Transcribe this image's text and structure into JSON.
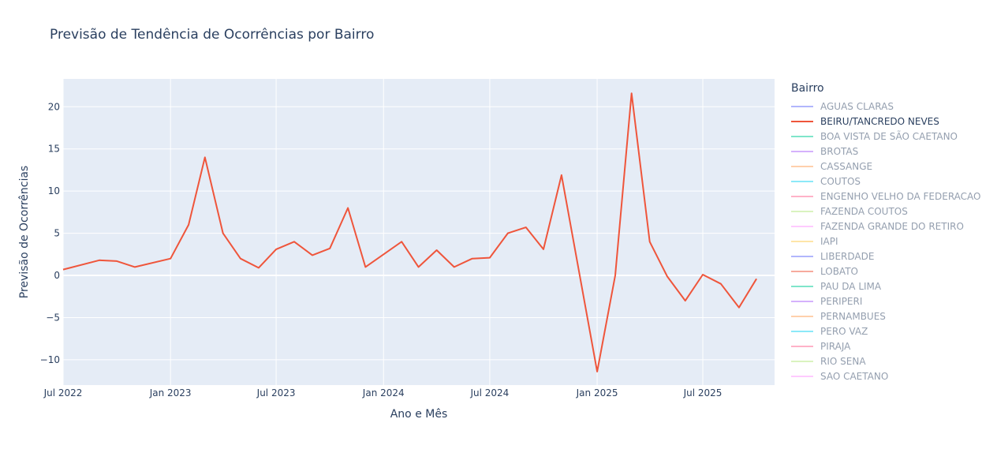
{
  "title": "Previsão de Tendência de Ocorrências por Bairro",
  "legend": {
    "title": "Bairro",
    "items": [
      {
        "label": "AGUAS CLARAS",
        "color": "#636efa",
        "visible": false
      },
      {
        "label": "BEIRU/TANCREDO NEVES",
        "color": "#ef553b",
        "visible": true
      },
      {
        "label": "BOA VISTA DE SÃO CAETANO",
        "color": "#00cc96",
        "visible": false
      },
      {
        "label": "BROTAS",
        "color": "#ab63fa",
        "visible": false
      },
      {
        "label": "CASSANGE",
        "color": "#ffa15a",
        "visible": false
      },
      {
        "label": "COUTOS",
        "color": "#19d3f3",
        "visible": false
      },
      {
        "label": "ENGENHO VELHO DA FEDERACAO",
        "color": "#ff6692",
        "visible": false
      },
      {
        "label": "FAZENDA COUTOS",
        "color": "#b6e880",
        "visible": false
      },
      {
        "label": "FAZENDA GRANDE DO RETIRO",
        "color": "#ff97ff",
        "visible": false
      },
      {
        "label": "IAPI",
        "color": "#fecb52",
        "visible": false
      },
      {
        "label": "LIBERDADE",
        "color": "#636efa",
        "visible": false
      },
      {
        "label": "LOBATO",
        "color": "#ef553b",
        "visible": false
      },
      {
        "label": "PAU DA LIMA",
        "color": "#00cc96",
        "visible": false
      },
      {
        "label": "PERIPERI",
        "color": "#ab63fa",
        "visible": false
      },
      {
        "label": "PERNAMBUES",
        "color": "#ffa15a",
        "visible": false
      },
      {
        "label": "PERO VAZ",
        "color": "#19d3f3",
        "visible": false
      },
      {
        "label": "PIRAJA",
        "color": "#ff6692",
        "visible": false
      },
      {
        "label": "RIO SENA",
        "color": "#b6e880",
        "visible": false
      },
      {
        "label": "SAO CAETANO",
        "color": "#ff97ff",
        "visible": false
      }
    ]
  },
  "chart_data": {
    "type": "line",
    "title": "Previsão de Tendência de Ocorrências por Bairro",
    "xlabel": "Ano e Mês",
    "ylabel": "Previsão de Ocorrências",
    "xlim": [
      "2022-07-01",
      "2025-11-01"
    ],
    "ylim": [
      -13,
      23.3
    ],
    "x_ticks": [
      {
        "date": "2022-07-01",
        "label": "Jul 2022"
      },
      {
        "date": "2023-01-01",
        "label": "Jan 2023"
      },
      {
        "date": "2023-07-01",
        "label": "Jul 2023"
      },
      {
        "date": "2024-01-01",
        "label": "Jan 2024"
      },
      {
        "date": "2024-07-01",
        "label": "Jul 2024"
      },
      {
        "date": "2025-01-01",
        "label": "Jan 2025"
      },
      {
        "date": "2025-07-01",
        "label": "Jul 2025"
      }
    ],
    "y_ticks": [
      {
        "value": 20,
        "label": "20"
      },
      {
        "value": 15,
        "label": "15"
      },
      {
        "value": 10,
        "label": "10"
      },
      {
        "value": 5,
        "label": "5"
      },
      {
        "value": 0,
        "label": "0"
      },
      {
        "value": -5,
        "label": "−5"
      },
      {
        "value": -10,
        "label": "−10"
      }
    ],
    "grid": true,
    "legend_position": "right",
    "series": [
      {
        "name": "BEIRU/TANCREDO NEVES",
        "color": "#ef553b",
        "points": [
          {
            "x": "2022-07-01",
            "y": 0.7
          },
          {
            "x": "2022-09-01",
            "y": 1.8
          },
          {
            "x": "2022-10-01",
            "y": 1.7
          },
          {
            "x": "2022-11-01",
            "y": 1.0
          },
          {
            "x": "2023-01-01",
            "y": 2.0
          },
          {
            "x": "2023-02-01",
            "y": 6.0
          },
          {
            "x": "2023-03-01",
            "y": 14.0
          },
          {
            "x": "2023-04-01",
            "y": 5.0
          },
          {
            "x": "2023-05-01",
            "y": 2.0
          },
          {
            "x": "2023-06-01",
            "y": 0.9
          },
          {
            "x": "2023-07-01",
            "y": 3.1
          },
          {
            "x": "2023-08-01",
            "y": 4.0
          },
          {
            "x": "2023-09-01",
            "y": 2.4
          },
          {
            "x": "2023-10-01",
            "y": 3.2
          },
          {
            "x": "2023-11-01",
            "y": 8.0
          },
          {
            "x": "2023-12-01",
            "y": 1.0
          },
          {
            "x": "2024-02-01",
            "y": 4.0
          },
          {
            "x": "2024-03-01",
            "y": 1.0
          },
          {
            "x": "2024-04-01",
            "y": 3.0
          },
          {
            "x": "2024-05-01",
            "y": 1.0
          },
          {
            "x": "2024-06-01",
            "y": 2.0
          },
          {
            "x": "2024-07-01",
            "y": 2.1
          },
          {
            "x": "2024-08-01",
            "y": 5.0
          },
          {
            "x": "2024-09-01",
            "y": 5.7
          },
          {
            "x": "2024-10-01",
            "y": 3.1
          },
          {
            "x": "2024-11-01",
            "y": 11.9
          },
          {
            "x": "2025-01-01",
            "y": -11.4
          },
          {
            "x": "2025-02-01",
            "y": 0.0
          },
          {
            "x": "2025-03-01",
            "y": 21.6
          },
          {
            "x": "2025-04-01",
            "y": 4.0
          },
          {
            "x": "2025-05-01",
            "y": -0.1
          },
          {
            "x": "2025-06-01",
            "y": -3.0
          },
          {
            "x": "2025-07-01",
            "y": 0.1
          },
          {
            "x": "2025-08-01",
            "y": -1.0
          },
          {
            "x": "2025-09-01",
            "y": -3.8
          },
          {
            "x": "2025-10-01",
            "y": -0.4
          }
        ]
      }
    ]
  }
}
